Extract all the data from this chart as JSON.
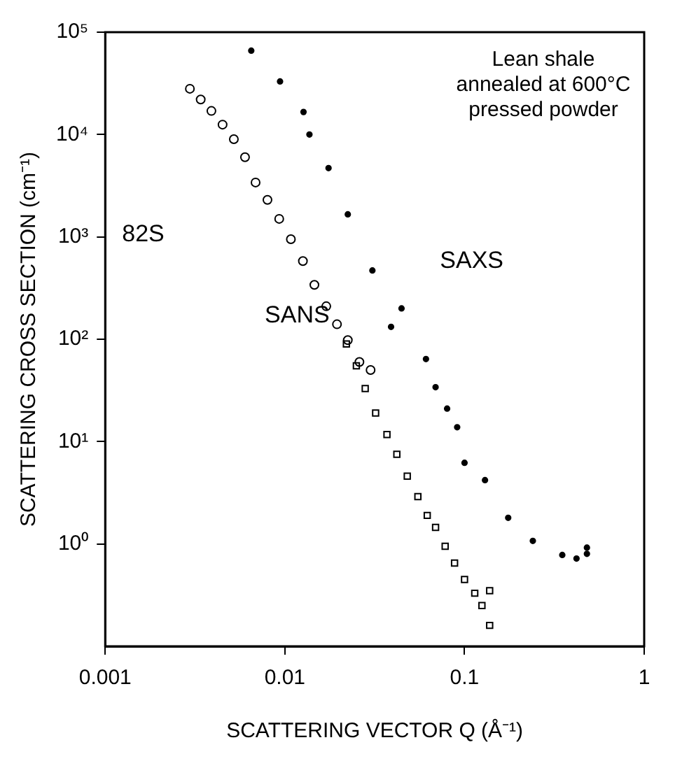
{
  "chart_data": {
    "type": "scatter",
    "xlabel": "SCATTERING VECTOR Q (Å⁻¹)",
    "ylabel": "SCATTERING CROSS SECTION (cm⁻¹)",
    "log": "xy",
    "grid": false,
    "legend": false,
    "xlim": [
      0.001,
      1
    ],
    "xticks": [
      0.001,
      0.01,
      0.1,
      1
    ],
    "ylim": [
      0.1,
      100000
    ],
    "yticks": [
      {
        "value": 1,
        "label": "10⁰"
      },
      {
        "value": 10,
        "label": "10¹"
      },
      {
        "value": 100,
        "label": "10²"
      },
      {
        "value": 1000,
        "label": "10³"
      },
      {
        "value": 10000,
        "label": "10⁴"
      },
      {
        "value": 100000,
        "label": "10⁵"
      }
    ],
    "annotations": [
      "Lean shale\nannealed at 600°C\npressed powder",
      "82S"
    ],
    "series": [
      {
        "color": "#000000",
        "marker": "circle",
        "x": [
          0.00296,
          0.0034,
          0.0039,
          0.0045,
          0.0052,
          0.006,
          0.00687,
          0.008,
          0.0093,
          0.0108,
          0.0126,
          0.0146,
          0.017,
          0.0195,
          0.0224,
          0.026,
          0.03
        ],
        "values": [
          28000,
          22000,
          17000,
          12500,
          9000,
          6000,
          3400,
          2300,
          1500,
          950,
          580,
          340,
          210,
          140,
          98,
          60,
          50
        ]
      },
      {
        "name": "SANS",
        "color": "#000000",
        "marker": "square",
        "x": [
          0.022,
          0.025,
          0.028,
          0.032,
          0.037,
          0.042,
          0.048,
          0.055,
          0.062,
          0.069,
          0.078,
          0.088,
          0.1,
          0.114,
          0.125,
          0.138,
          0.138
        ],
        "values": [
          90,
          55,
          33,
          19,
          11.7,
          7.5,
          4.6,
          2.9,
          1.9,
          1.45,
          0.95,
          0.65,
          0.45,
          0.33,
          0.25,
          0.16,
          0.35
        ]
      },
      {
        "name": "SAXS",
        "color": "#000000",
        "marker": "circle",
        "x": [
          0.0065,
          0.0094,
          0.0127,
          0.0137,
          0.0175,
          0.0224,
          0.0307,
          0.039,
          0.0446,
          0.061,
          0.069,
          0.08,
          0.091,
          0.1,
          0.13,
          0.175,
          0.24,
          0.35,
          0.42,
          0.48,
          0.48
        ],
        "values": [
          66000,
          33000,
          16600,
          10000,
          4700,
          1660,
          470,
          132,
          200,
          64,
          34,
          21,
          13.8,
          6.2,
          4.2,
          1.8,
          1.07,
          0.78,
          0.72,
          0.8,
          0.92
        ]
      }
    ]
  }
}
